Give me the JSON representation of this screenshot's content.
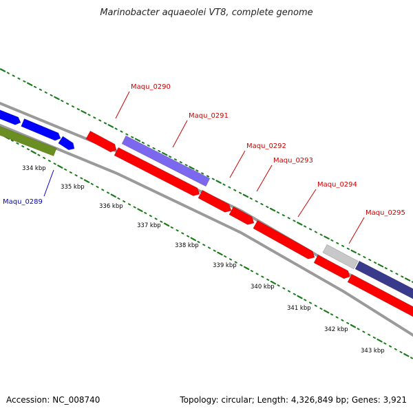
{
  "title": "Marinobacter aquaeolei VT8, complete genome",
  "accession": "Accession: NC_008740",
  "summary": "Topology: circular; Length: 4,326,849 bp; Genes: 3,921",
  "colors": {
    "backbone": "#808080",
    "tick": "#1a7a1a",
    "label_red": "#cc0000",
    "label_blue": "#0000cc",
    "gene_red": "#ff0000",
    "gene_blue": "#0000ff",
    "gene_olive": "#6b8e23",
    "gene_lavender": "#7b68ee",
    "gene_grey": "#c8c8c8",
    "gene_navy": "#3a3a8c"
  },
  "scale_labels": [
    "334 kbp",
    "335 kbp",
    "336 kbp",
    "337 kbp",
    "338 kbp",
    "339 kbp",
    "340 kbp",
    "341 kbp",
    "342 kbp",
    "343 kbp"
  ],
  "gene_labels": [
    {
      "text": "Maqu_0289",
      "color": "blue"
    },
    {
      "text": "Maqu_0290",
      "color": "red"
    },
    {
      "text": "Maqu_0291",
      "color": "red"
    },
    {
      "text": "Maqu_0292",
      "color": "red"
    },
    {
      "text": "Maqu_0293",
      "color": "red"
    },
    {
      "text": "Maqu_0294",
      "color": "red"
    },
    {
      "text": "Maqu_0295",
      "color": "red"
    }
  ]
}
